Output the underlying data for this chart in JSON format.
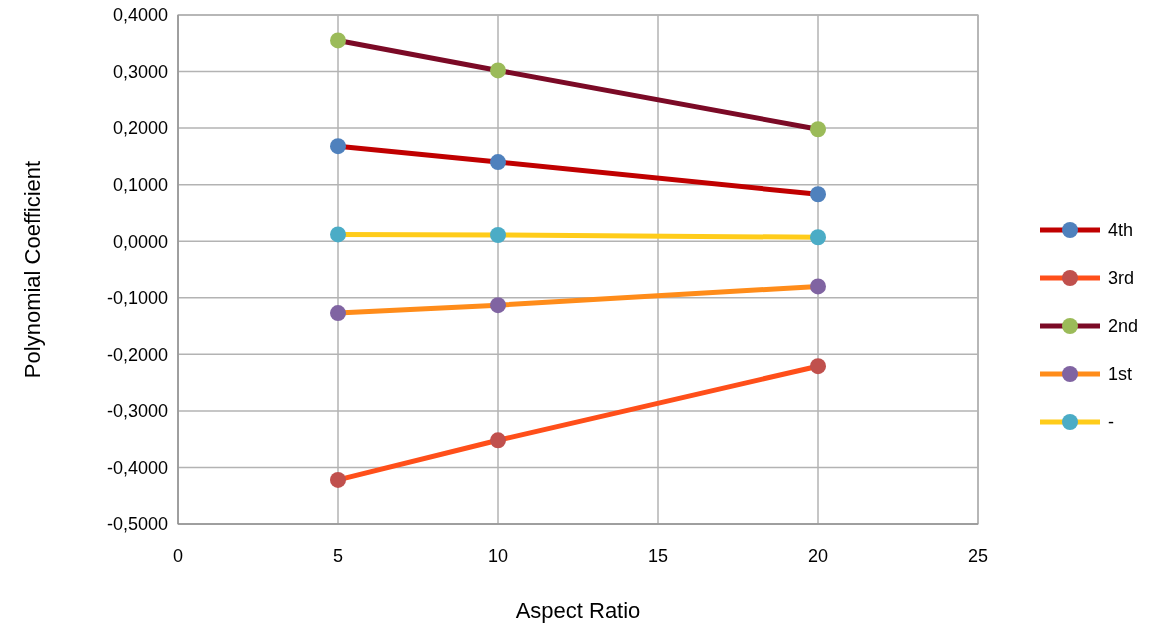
{
  "chart_data": {
    "type": "line",
    "xlabel": "Aspect Ratio",
    "ylabel": "Polynomial Coefficient",
    "x": [
      5,
      10,
      20
    ],
    "series": [
      {
        "name": "4th",
        "color": "#c00000",
        "colors": [
          "#4f81bd",
          "#4f81bd",
          "#4f81bd"
        ],
        "values": [
          0.168,
          0.14,
          0.083
        ]
      },
      {
        "name": "3rd",
        "color": "#ff4f1a",
        "colors": [
          "#c0504d",
          "#c0504d",
          "#c0504d"
        ],
        "values": [
          -0.422,
          -0.352,
          -0.221
        ]
      },
      {
        "name": "2nd",
        "color": "#7b0a26",
        "colors": [
          "#9bbb59",
          "#9bbb59",
          "#9bbb59"
        ],
        "values": [
          0.355,
          0.302,
          0.198
        ]
      },
      {
        "name": "1st",
        "color": "#ff8c1a",
        "colors": [
          "#8064a2",
          "#8064a2",
          "#8064a2"
        ],
        "values": [
          -0.127,
          -0.113,
          -0.08
        ]
      },
      {
        "name": "-",
        "color": "#ffcc1a",
        "colors": [
          "#4bacc6",
          "#4bacc6",
          "#4bacc6"
        ],
        "values": [
          0.012,
          0.011,
          0.007
        ]
      }
    ],
    "xlim": [
      0,
      25
    ],
    "xticks": [
      0,
      5,
      10,
      15,
      20,
      25
    ],
    "ylim": [
      -0.5,
      0.4
    ],
    "yticks": [
      {
        "value": -0.5,
        "label": "-0,5000"
      },
      {
        "value": -0.4,
        "label": "-0,4000"
      },
      {
        "value": -0.3,
        "label": "-0,3000"
      },
      {
        "value": -0.2,
        "label": "-0,2000"
      },
      {
        "value": -0.1,
        "label": "-0,1000"
      },
      {
        "value": 0,
        "label": "0,0000"
      },
      {
        "value": 0.1,
        "label": "0,1000"
      },
      {
        "value": 0.2,
        "label": "0,2000"
      },
      {
        "value": 0.3,
        "label": "0,3000"
      },
      {
        "value": 0.4,
        "label": "0,4000"
      }
    ],
    "grid": true,
    "legend": "right",
    "marker": "circle",
    "line_style": "solid"
  }
}
